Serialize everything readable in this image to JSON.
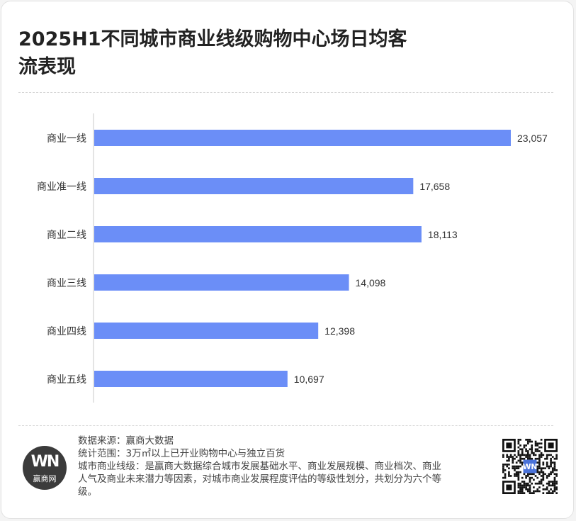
{
  "title": "2025H1不同城市商业线级购物中心场日均客流表现",
  "chart_data": {
    "type": "bar",
    "orientation": "horizontal",
    "categories": [
      "商业一线",
      "商业准一线",
      "商业二线",
      "商业三线",
      "商业四线",
      "商业五线"
    ],
    "values": [
      23057,
      17658,
      18113,
      14098,
      12398,
      10697
    ],
    "value_labels": [
      "23,057",
      "17,658",
      "18,113",
      "14,098",
      "12,398",
      "10,697"
    ],
    "xlim": [
      0,
      23057
    ],
    "bar_color": "#6b8ef7",
    "grid": false,
    "legend": "none"
  },
  "footer": {
    "source": "数据来源：赢商大数据",
    "scope": "统计范围：3万㎡以上已开业购物中心与独立百货",
    "definition": "城市商业线级：是赢商大数据综合城市发展基础水平、商业发展规模、商业档次、商业人气及商业未来潜力等因素，对城市商业发展程度评估的等级性划分，共划分为六个等级。"
  },
  "logo": {
    "mark": "WN",
    "brand": "赢商网",
    "qr_label": "WN"
  },
  "colors": {
    "axis": "#c8c8c8",
    "label": "#333333",
    "logo_bg": "#3b3b3b"
  }
}
